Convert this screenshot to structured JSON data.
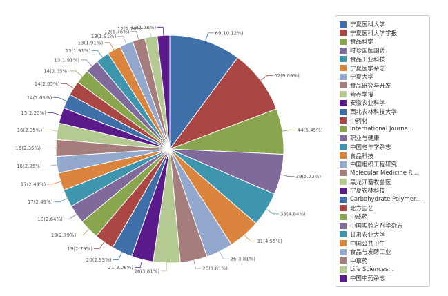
{
  "chart_data": {
    "type": "pie",
    "series": [
      {
        "name": "宁夏医科大学",
        "label": "69(10.12%)",
        "value": 69,
        "percent": 10.12,
        "color": "#3f6fa8"
      },
      {
        "name": "宁夏医科大学学报",
        "label": "62(9.09%)",
        "value": 62,
        "percent": 9.09,
        "color": "#aa4643"
      },
      {
        "name": "食品科学",
        "label": "44(6.45%)",
        "value": 44,
        "percent": 6.45,
        "color": "#89a54e"
      },
      {
        "name": "时珍国医国药",
        "label": "39(5.72%)",
        "value": 39,
        "percent": 5.72,
        "color": "#80699b"
      },
      {
        "name": "食品工业科技",
        "label": "33(4.84%)",
        "value": 33,
        "percent": 4.84,
        "color": "#3d96ae"
      },
      {
        "name": "宁夏医学杂志",
        "label": "31(4.55%)",
        "value": 31,
        "percent": 4.55,
        "color": "#db843d"
      },
      {
        "name": "宁夏大学",
        "label": "26(3.81%)",
        "value": 26,
        "percent": 3.81,
        "color": "#92a8cd"
      },
      {
        "name": "食品研究与开发",
        "label": "26(3.81%)",
        "value": 26,
        "percent": 3.81,
        "color": "#a47d7c"
      },
      {
        "name": "营养学报",
        "label": "26(3.81%)",
        "value": 26,
        "percent": 3.81,
        "color": "#b5ca92"
      },
      {
        "name": "安徽农业科学",
        "label": "21(3.08%)",
        "value": 21,
        "percent": 3.08,
        "color": "#5a1a8c"
      },
      {
        "name": "西北农林科技大学",
        "label": "20(2.93%)",
        "value": 20,
        "percent": 2.93,
        "color": "#3f6fa8"
      },
      {
        "name": "中药材",
        "label": "19(2.79%)",
        "value": 19,
        "percent": 2.79,
        "color": "#aa4643"
      },
      {
        "name": "International Journa...",
        "label": "19(2.79%)",
        "value": 19,
        "percent": 2.79,
        "color": "#89a54e"
      },
      {
        "name": "职业与健康",
        "label": "18(2.64%)",
        "value": 18,
        "percent": 2.64,
        "color": "#80699b"
      },
      {
        "name": "中国老年学杂志",
        "label": "17(2.49%)",
        "value": 17,
        "percent": 2.49,
        "color": "#3d96ae"
      },
      {
        "name": "食品科技",
        "label": "17(2.49%)",
        "value": 17,
        "percent": 2.49,
        "color": "#db843d"
      },
      {
        "name": "中国组织工程研究",
        "label": "16(2.35%)",
        "value": 16,
        "percent": 2.35,
        "color": "#92a8cd"
      },
      {
        "name": "Molecular Medicine R...",
        "label": "16(2.35%)",
        "value": 16,
        "percent": 2.35,
        "color": "#a47d7c"
      },
      {
        "name": "黑龙江畜牧兽医",
        "label": "16(2.35%)",
        "value": 16,
        "percent": 2.35,
        "color": "#b5ca92"
      },
      {
        "name": "宁夏农林科技",
        "label": "15(2.20%)",
        "value": 15,
        "percent": 2.2,
        "color": "#5a1a8c"
      },
      {
        "name": "Carbohydrate Polymer...",
        "label": "14(2.05%)",
        "value": 14,
        "percent": 2.05,
        "color": "#3f6fa8"
      },
      {
        "name": "北方园艺",
        "label": "14(2.05%)",
        "value": 14,
        "percent": 2.05,
        "color": "#aa4643"
      },
      {
        "name": "中成药",
        "label": "14(2.05%)",
        "value": 14,
        "percent": 2.05,
        "color": "#89a54e"
      },
      {
        "name": "中国实验方剂学杂志",
        "label": "13(1.91%)",
        "value": 13,
        "percent": 1.91,
        "color": "#80699b"
      },
      {
        "name": "甘肃农业大学",
        "label": "13(1.91%)",
        "value": 13,
        "percent": 1.91,
        "color": "#3d96ae"
      },
      {
        "name": "中国公共卫生",
        "label": "13(1.91%)",
        "value": 13,
        "percent": 1.91,
        "color": "#db843d"
      },
      {
        "name": "食品与发酵工业",
        "label": "13(1.91%)",
        "value": 13,
        "percent": 1.91,
        "color": "#92a8cd"
      },
      {
        "name": "中草药",
        "label": "12(1.76%)",
        "value": 12,
        "percent": 1.76,
        "color": "#a47d7c"
      },
      {
        "name": "Life Sciences...",
        "label": "12(1.76%)",
        "value": 12,
        "percent": 1.76,
        "color": "#b5ca92"
      },
      {
        "name": "中国中药杂志",
        "label": "12(1.76%)",
        "value": 12,
        "percent": 1.76,
        "color": "#5a1a8c"
      }
    ],
    "legend_position": "right"
  }
}
